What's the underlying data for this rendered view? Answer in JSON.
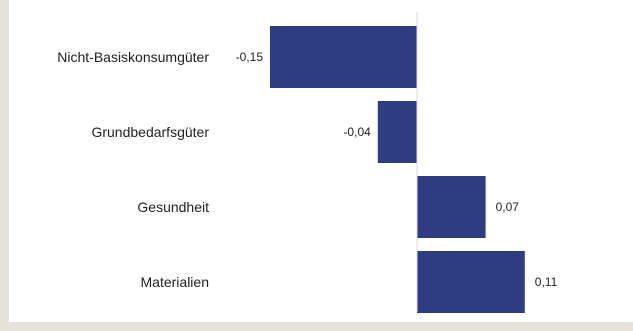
{
  "chart_data": {
    "type": "bar",
    "orientation": "horizontal",
    "categories": [
      "Nicht-Basiskonsumgüter",
      "Grundbedarfsgüter",
      "Gesundheit",
      "Materialien"
    ],
    "values": [
      -0.15,
      -0.04,
      0.07,
      0.11
    ],
    "value_labels": [
      "-0,15",
      "-0,04",
      "0,07",
      "0,11"
    ],
    "title": "",
    "xlabel": "",
    "ylabel": "",
    "xlim": [
      -0.22,
      0.135
    ],
    "grid": false,
    "legend": "none",
    "colors": {
      "bar": "#2e3d82",
      "zero_line": "#d9d9d9",
      "background": "#ffffff",
      "page_background": "#e8e1da"
    }
  }
}
